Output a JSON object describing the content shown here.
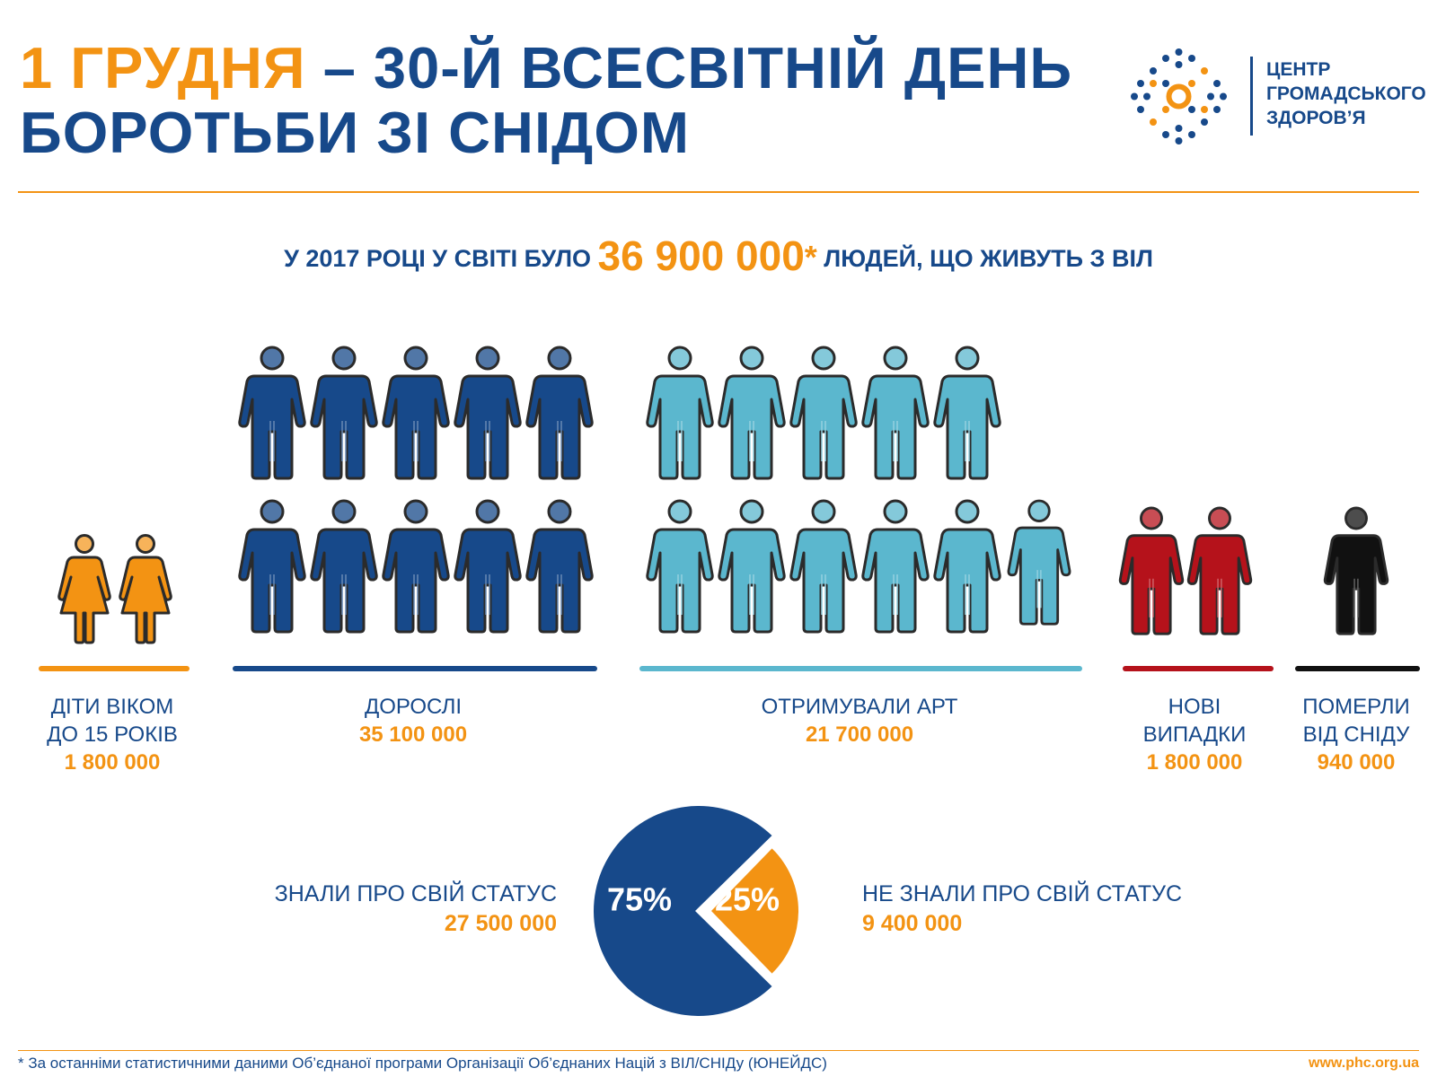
{
  "header": {
    "title_highlight": "1 ГРУДНЯ",
    "title_rest_line1": " – 30-Й ВСЕСВІТНІЙ ДЕНЬ",
    "title_line2": "БОРОТЬБИ ЗІ СНІДОМ"
  },
  "logo": {
    "line1": "ЦЕНТР",
    "line2": "ГРОМАДСЬКОГО",
    "line3": "ЗДОРОВ’Я",
    "icon": "phc-dots-logo-icon"
  },
  "headline": {
    "prefix": "У 2017 РОЦІ У СВІТІ БУЛО ",
    "number": "36 900 000",
    "star": "*",
    "suffix": " ЛЮДЕЙ, ЩО ЖИВУТЬ З ВІЛ"
  },
  "groups": {
    "children": {
      "line1": "ДІТИ ВІКОМ",
      "line2": "ДО 15 РОКІВ",
      "value": "1 800 000",
      "color": "#f39313"
    },
    "adults": {
      "line1": "ДОРОСЛІ",
      "value": "35 100 000",
      "color": "#17498a"
    },
    "art": {
      "line1": "ОТРИМУВАЛИ АРТ",
      "value": "21 700 000",
      "color": "#5bb7ce"
    },
    "new_cases": {
      "line1": "НОВІ",
      "line2": "ВИПАДКИ",
      "value": "1 800 000",
      "color": "#b5121b"
    },
    "died": {
      "line1": "ПОМЕРЛИ",
      "line2": "ВІД СНІДУ",
      "value": "940 000",
      "color": "#111111"
    }
  },
  "pie": {
    "known_label": "ЗНАЛИ ПРО СВІЙ СТАТУС",
    "known_value": "27 500 000",
    "known_pct": "75%",
    "unknown_label": "НЕ ЗНАЛИ ПРО СВІЙ СТАТУС",
    "unknown_value": "9 400 000",
    "unknown_pct": "25%"
  },
  "footer": {
    "note": "* За останніми статистичними даними Об’єднаної програми Організації Об’єднаних Націй з ВІЛ/СНІДу (ЮНЕЙДС)",
    "url": "www.phc.org.ua"
  },
  "chart_data": [
    {
      "type": "bar",
      "categories": [
        "ДІТИ ВІКОМ ДО 15 РОКІВ",
        "ДОРОСЛІ",
        "ОТРИМУВАЛИ АРТ",
        "НОВІ ВИПАДКИ",
        "ПОМЕРЛИ ВІД СНІДУ"
      ],
      "values": [
        1800000,
        35100000,
        21700000,
        1800000,
        940000
      ],
      "icon_counts": [
        2,
        10,
        11,
        2,
        1
      ],
      "colors": [
        "#f39313",
        "#17498a",
        "#5bb7ce",
        "#b5121b",
        "#111111"
      ]
    },
    {
      "type": "pie",
      "labels": [
        "ЗНАЛИ ПРО СВІЙ СТАТУС",
        "НЕ ЗНАЛИ ПРО СВІЙ СТАТУС"
      ],
      "values": [
        27500000,
        9400000
      ],
      "percent": [
        75,
        25
      ],
      "colors": [
        "#17498a",
        "#f39313"
      ]
    }
  ]
}
